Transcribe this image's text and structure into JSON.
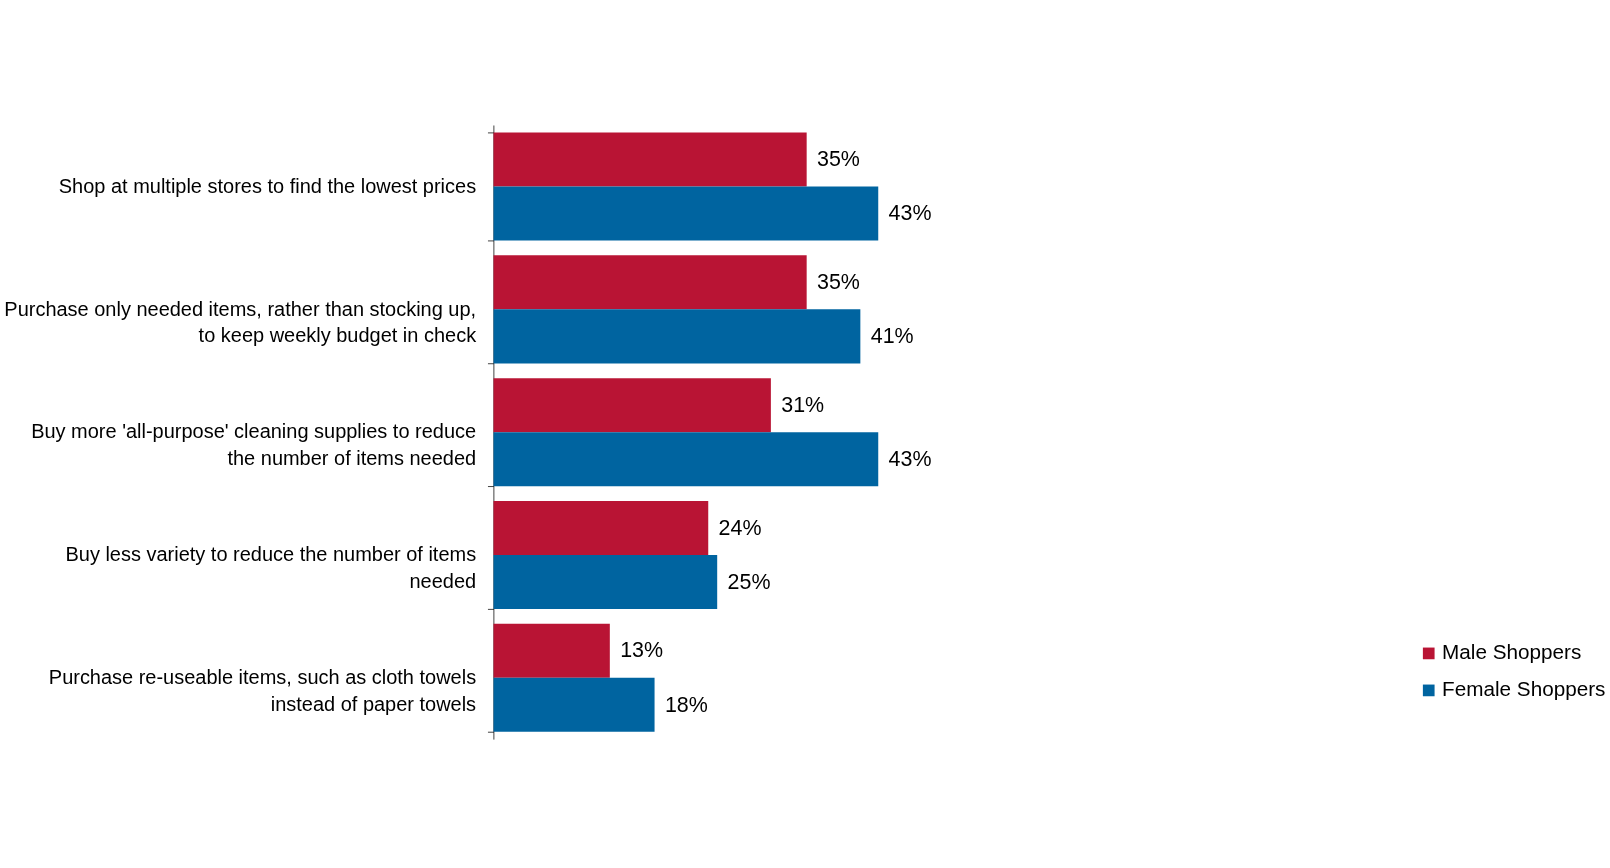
{
  "chart_data": {
    "type": "bar",
    "orientation": "horizontal",
    "legend": "bottom right",
    "grid": false,
    "categories": [
      "Shop at multiple stores to find the lowest prices",
      "Purchase only needed items, rather than stocking up, to keep weekly budget in check",
      "Buy more 'all-purpose' cleaning supplies to reduce the number of items needed",
      "Buy less variety to reduce the number of items needed",
      "Purchase re-useable items, such as cloth towels instead of paper towels"
    ],
    "series": [
      {
        "name": "Male Shoppers",
        "color": "#b91434",
        "values": [
          35,
          35,
          31,
          24,
          13
        ],
        "value_labels": [
          "35%",
          "35%",
          "31%",
          "24%",
          "13%"
        ]
      },
      {
        "name": "Female Shoppers",
        "color": "#0064a0",
        "values": [
          43,
          41,
          43,
          25,
          18
        ],
        "value_labels": [
          "43%",
          "41%",
          "43%",
          "25%",
          "18%"
        ]
      }
    ]
  }
}
